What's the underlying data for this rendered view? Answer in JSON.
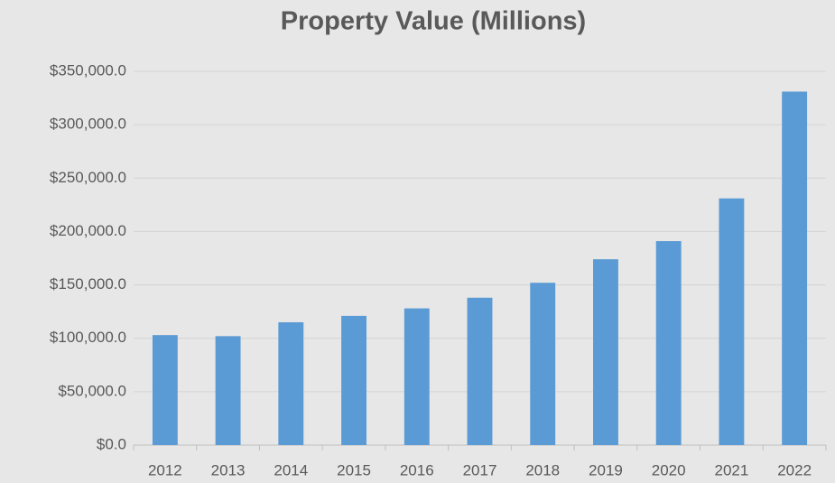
{
  "chart_data": {
    "type": "bar",
    "title": "Property Value (Millions)",
    "categories": [
      "2012",
      "2013",
      "2014",
      "2015",
      "2016",
      "2017",
      "2018",
      "2019",
      "2020",
      "2021",
      "2022"
    ],
    "values": [
      103000,
      102000,
      115000,
      121000,
      128000,
      138000,
      152000,
      174000,
      191000,
      231000,
      331000
    ],
    "color": "#5b9bd5",
    "ylim": [
      0,
      350000
    ],
    "yticks": [
      {
        "value": 0,
        "label": "$0.0"
      },
      {
        "value": 50000,
        "label": "$50,000.0"
      },
      {
        "value": 100000,
        "label": "$100,000.0"
      },
      {
        "value": 150000,
        "label": "$150,000.0"
      },
      {
        "value": 200000,
        "label": "$200,000.0"
      },
      {
        "value": 250000,
        "label": "$250,000.0"
      },
      {
        "value": 300000,
        "label": "$300,000.0"
      },
      {
        "value": 350000,
        "label": "$350,000.0"
      }
    ],
    "grid": true
  }
}
